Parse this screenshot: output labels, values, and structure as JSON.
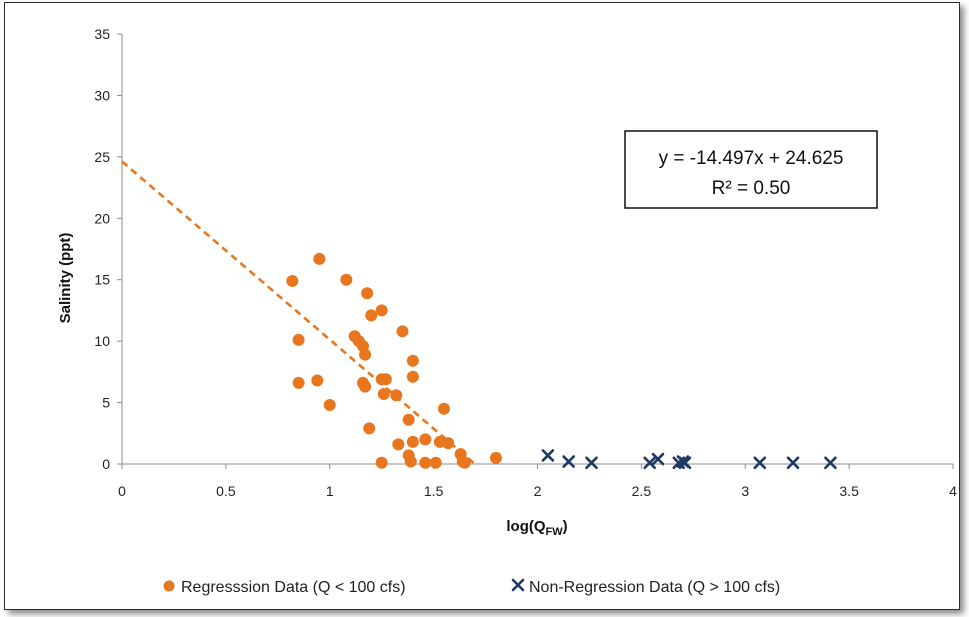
{
  "chart_data": {
    "type": "scatter",
    "xlabel_main": "log(Q",
    "xlabel_sub": "FW",
    "xlabel_close": ")",
    "ylabel": "Salinity (ppt)",
    "xlim": [
      0,
      4
    ],
    "ylim": [
      0,
      35
    ],
    "x_ticks": [
      "0",
      "0.5",
      "1",
      "1.5",
      "2",
      "2.5",
      "3",
      "3.5",
      "4"
    ],
    "y_ticks": [
      "0",
      "5",
      "10",
      "15",
      "20",
      "25",
      "30",
      "35"
    ],
    "grid": false,
    "legend_position": "bottom",
    "series": [
      {
        "name": "Regresssion Data (Q < 100 cfs)",
        "marker": "circle",
        "color": "#E8761E",
        "points": [
          [
            0.82,
            14.9
          ],
          [
            0.95,
            16.7
          ],
          [
            1.08,
            15.0
          ],
          [
            1.18,
            13.9
          ],
          [
            1.2,
            12.1
          ],
          [
            1.25,
            12.5
          ],
          [
            0.85,
            10.1
          ],
          [
            1.12,
            10.4
          ],
          [
            1.14,
            10.0
          ],
          [
            1.16,
            9.6
          ],
          [
            1.17,
            8.9
          ],
          [
            1.35,
            10.8
          ],
          [
            1.4,
            8.4
          ],
          [
            1.4,
            7.1
          ],
          [
            0.85,
            6.6
          ],
          [
            0.94,
            6.8
          ],
          [
            1.16,
            6.6
          ],
          [
            1.17,
            6.3
          ],
          [
            1.25,
            6.9
          ],
          [
            1.27,
            6.9
          ],
          [
            1.26,
            5.7
          ],
          [
            1.32,
            5.6
          ],
          [
            1.0,
            4.8
          ],
          [
            1.55,
            4.5
          ],
          [
            1.38,
            3.6
          ],
          [
            1.19,
            2.9
          ],
          [
            1.4,
            1.8
          ],
          [
            1.46,
            2.0
          ],
          [
            1.53,
            1.8
          ],
          [
            1.57,
            1.7
          ],
          [
            1.33,
            1.6
          ],
          [
            1.38,
            0.7
          ],
          [
            1.63,
            0.8
          ],
          [
            1.8,
            0.5
          ],
          [
            1.25,
            0.1
          ],
          [
            1.39,
            0.2
          ],
          [
            1.46,
            0.1
          ],
          [
            1.51,
            0.1
          ],
          [
            1.65,
            0.1
          ],
          [
            1.64,
            0.2
          ]
        ]
      },
      {
        "name": "Non-Regression Data (Q > 100 cfs)",
        "marker": "x",
        "color": "#1F3864",
        "points": [
          [
            2.05,
            0.7
          ],
          [
            2.15,
            0.2
          ],
          [
            2.26,
            0.1
          ],
          [
            2.54,
            0.1
          ],
          [
            2.58,
            0.4
          ],
          [
            2.68,
            0.1
          ],
          [
            2.7,
            0.2
          ],
          [
            2.71,
            0.1
          ],
          [
            3.07,
            0.1
          ],
          [
            3.23,
            0.1
          ],
          [
            3.41,
            0.1
          ]
        ]
      }
    ],
    "trendline": {
      "slope": -14.497,
      "intercept": 24.625,
      "x_range": [
        0,
        1.698
      ],
      "color": "#E8761E",
      "style": "dashed",
      "equation": "y = -14.497x + 24.625",
      "r_squared": "R² = 0.50"
    }
  }
}
